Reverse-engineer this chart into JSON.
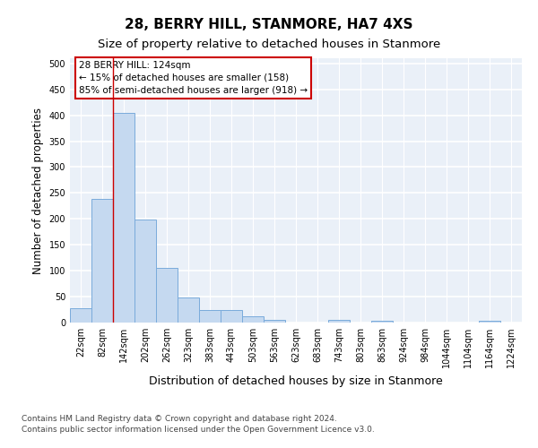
{
  "title": "28, BERRY HILL, STANMORE, HA7 4XS",
  "subtitle": "Size of property relative to detached houses in Stanmore",
  "xlabel": "Distribution of detached houses by size in Stanmore",
  "ylabel": "Number of detached properties",
  "bin_labels": [
    "22sqm",
    "82sqm",
    "142sqm",
    "202sqm",
    "262sqm",
    "323sqm",
    "383sqm",
    "443sqm",
    "503sqm",
    "563sqm",
    "623sqm",
    "683sqm",
    "743sqm",
    "803sqm",
    "863sqm",
    "924sqm",
    "984sqm",
    "1044sqm",
    "1104sqm",
    "1164sqm",
    "1224sqm"
  ],
  "bar_values": [
    27,
    238,
    404,
    199,
    105,
    49,
    25,
    25,
    12,
    6,
    0,
    0,
    6,
    0,
    4,
    0,
    0,
    0,
    0,
    4,
    0
  ],
  "bar_color": "#c5d9f0",
  "bar_edge_color": "#7aabdb",
  "vline_x": 1.5,
  "vline_color": "#cc0000",
  "annotation_text": "28 BERRY HILL: 124sqm\n← 15% of detached houses are smaller (158)\n85% of semi-detached houses are larger (918) →",
  "annotation_box_color": "#ffffff",
  "annotation_box_edge_color": "#cc0000",
  "ylim": [
    0,
    510
  ],
  "yticks": [
    0,
    50,
    100,
    150,
    200,
    250,
    300,
    350,
    400,
    450,
    500
  ],
  "background_color": "#eaf0f8",
  "grid_color": "#ffffff",
  "footer_line1": "Contains HM Land Registry data © Crown copyright and database right 2024.",
  "footer_line2": "Contains public sector information licensed under the Open Government Licence v3.0.",
  "title_fontsize": 11,
  "subtitle_fontsize": 9.5,
  "xlabel_fontsize": 9,
  "ylabel_fontsize": 8.5,
  "tick_fontsize": 7,
  "annotation_fontsize": 7.5,
  "footer_fontsize": 6.5
}
